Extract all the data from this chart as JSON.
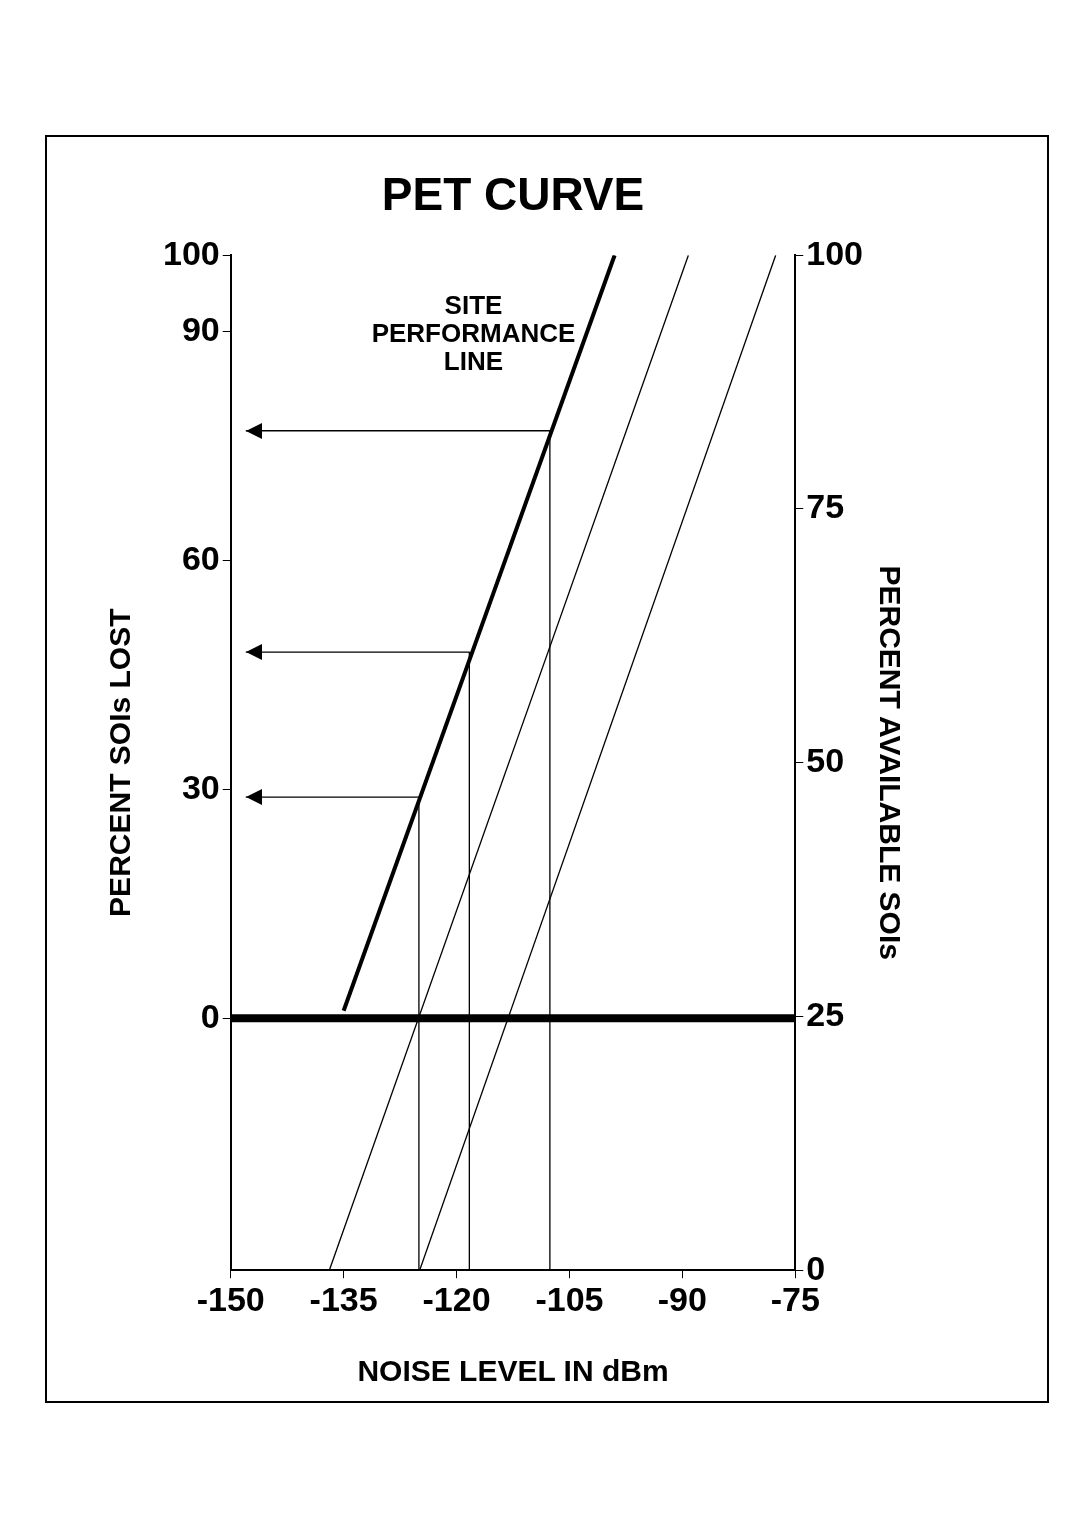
{
  "chart_data": {
    "type": "line",
    "title": "PET CURVE",
    "xlabel": "NOISE LEVEL IN dBm",
    "ylabel": "PERCENT SOIs LOST",
    "y2label": "PERCENT AVAILABLE SOIs",
    "xlim": [
      -150,
      -75
    ],
    "xticks": [
      -150,
      -135,
      -120,
      -105,
      -90,
      -75
    ],
    "ylim": [
      -33,
      100
    ],
    "yticks": [
      0,
      30,
      60,
      90,
      100
    ],
    "y2lim": [
      0,
      100
    ],
    "y2ticks": [
      0,
      25,
      50,
      75,
      100
    ],
    "grid": false,
    "legend": false,
    "line_style": "solid",
    "series": [
      {
        "color": "#000000",
        "x": [
          -135,
          -99
        ],
        "values": [
          1,
          100
        ]
      },
      {
        "color": "#000000",
        "x": [
          -136.9,
          -89.2
        ],
        "values": [
          -33,
          100
        ]
      },
      {
        "color": "#000000",
        "x": [
          -124.9,
          -77.6
        ],
        "values": [
          -33,
          100
        ]
      },
      {
        "color": "#000000",
        "x": [
          -125,
          -125,
          -148
        ],
        "values": [
          -33,
          29,
          29
        ]
      },
      {
        "color": "#000000",
        "x": [
          -118.3,
          -118.3,
          -148
        ],
        "values": [
          -33,
          48,
          48
        ]
      },
      {
        "color": "#000000",
        "x": [
          -107.6,
          -107.6,
          -148
        ],
        "values": [
          -33,
          77,
          77
        ]
      }
    ],
    "ref_lines": [
      {
        "axis": "y",
        "value": 0,
        "color": "#000000"
      }
    ],
    "annotations": [
      "SITE\nPERFORMANCE\nLINE"
    ]
  }
}
